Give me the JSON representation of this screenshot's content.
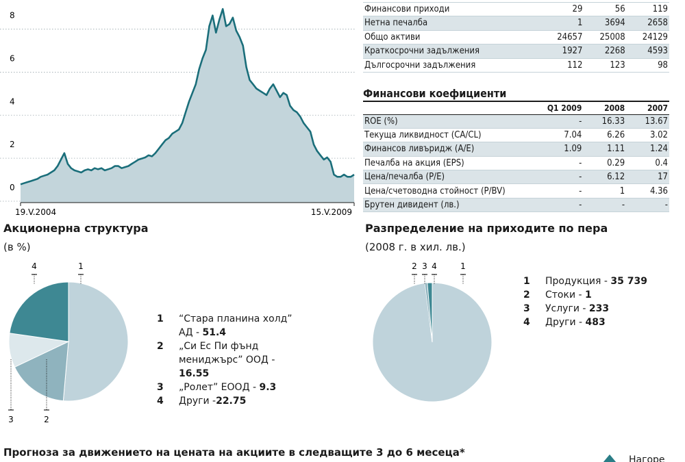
{
  "colors": {
    "area_fill": "#c3d5db",
    "line": "#1a6e7a",
    "pie_light": "#bfd3db",
    "pie_mid": "#8fb3be",
    "pie_pale": "#dde8ec",
    "pie_dark": "#3e8893",
    "table_band": "#dbe4e8"
  },
  "chart_data": [
    {
      "type": "area",
      "x_start_label": "19.V.2004",
      "x_end_label": "15.V.2009",
      "yticks": [
        0,
        2,
        4,
        6,
        8
      ],
      "ylim": [
        -0.7,
        8.4
      ],
      "grid": true,
      "series": [
        {
          "values": [
            0.15,
            0.2,
            0.25,
            0.3,
            0.35,
            0.4,
            0.5,
            0.55,
            0.6,
            0.7,
            0.8,
            1.0,
            1.3,
            1.6,
            1.1,
            0.9,
            0.8,
            0.75,
            0.7,
            0.8,
            0.85,
            0.8,
            0.9,
            0.85,
            0.9,
            0.8,
            0.85,
            0.9,
            1.0,
            1.0,
            0.9,
            0.95,
            1.0,
            1.1,
            1.2,
            1.3,
            1.35,
            1.4,
            1.5,
            1.45,
            1.6,
            1.8,
            2.0,
            2.2,
            2.3,
            2.5,
            2.6,
            2.7,
            3.0,
            3.5,
            4.0,
            4.4,
            4.8,
            5.5,
            6.0,
            6.4,
            7.5,
            8.0,
            7.2,
            7.8,
            8.3,
            7.5,
            7.6,
            7.9,
            7.3,
            7.0,
            6.6,
            5.6,
            5.0,
            4.8,
            4.6,
            4.5,
            4.4,
            4.3,
            4.6,
            4.8,
            4.5,
            4.2,
            4.4,
            4.3,
            3.8,
            3.6,
            3.5,
            3.3,
            3.0,
            2.8,
            2.6,
            2.0,
            1.7,
            1.5,
            1.3,
            1.4,
            1.2,
            0.6,
            0.5,
            0.5,
            0.6,
            0.5,
            0.5,
            0.6
          ]
        }
      ]
    },
    {
      "type": "pie",
      "title": "Акционерна структура",
      "subtitle": "(в %)",
      "series": [
        {
          "values": [
            51.4,
            16.55,
            9.3,
            22.75
          ],
          "labels": [
            "1",
            "2",
            "3",
            "4"
          ]
        }
      ]
    },
    {
      "type": "pie",
      "title": "Разпределение на приходите по пера",
      "subtitle": "(2008 г. в хил. лв.)",
      "series": [
        {
          "values": [
            35739,
            1,
            233,
            483
          ],
          "labels": [
            "1",
            "2",
            "3",
            "4"
          ]
        }
      ]
    }
  ],
  "financials": {
    "rows": [
      {
        "label": "Финансови приходи",
        "v1": "29",
        "v2": "56",
        "v3": "119"
      },
      {
        "label": "Нетна печалба",
        "v1": "1",
        "v2": "3694",
        "v3": "2658"
      },
      {
        "label": "Общо активи",
        "v1": "24657",
        "v2": "25008",
        "v3": "24129"
      },
      {
        "label": "Краткосрочни задължения",
        "v1": "1927",
        "v2": "2268",
        "v3": "4593"
      },
      {
        "label": "Дългосрочни задължения",
        "v1": "112",
        "v2": "123",
        "v3": "98"
      }
    ]
  },
  "ratios": {
    "title": "Финансови коефициенти",
    "headers": [
      "Q1 2009",
      "2008",
      "2007"
    ],
    "rows": [
      {
        "label": "ROE (%)",
        "v1": "-",
        "v2": "16.33",
        "v3": "13.67"
      },
      {
        "label": "Текуща ликвидност (CA/CL)",
        "v1": "7.04",
        "v2": "6.26",
        "v3": "3.02"
      },
      {
        "label": "Финансов ливъридж (A/E)",
        "v1": "1.09",
        "v2": "1.11",
        "v3": "1.24"
      },
      {
        "label": "Печалба на акция (EPS)",
        "v1": "-",
        "v2": "0.29",
        "v3": "0.4"
      },
      {
        "label": "Цена/печалба (P/E)",
        "v1": "-",
        "v2": "6.12",
        "v3": "17"
      },
      {
        "label": "Цена/счетоводна стойност (P/BV)",
        "v1": "-",
        "v2": "1",
        "v3": "4.36"
      },
      {
        "label": "Брутен дивидент (лв.)",
        "v1": "-",
        "v2": "-",
        "v3": "-"
      }
    ]
  },
  "shareholders": {
    "legend": [
      {
        "n": "1",
        "text": "“Стара планина холд” АД - ",
        "value": "51.4"
      },
      {
        "n": "2",
        "text": "„Си Ес Пи фънд мениджърс” ООД - ",
        "value": "16.55"
      },
      {
        "n": "3",
        "text": "„Ролет” ЕООД - ",
        "value": "9.3"
      },
      {
        "n": "4",
        "text": "Други -",
        "value": "22.75"
      }
    ]
  },
  "revenue": {
    "legend": [
      {
        "n": "1",
        "text": "Продукция - ",
        "value": "35 739"
      },
      {
        "n": "2",
        "text": "Стоки - ",
        "value": "1"
      },
      {
        "n": "3",
        "text": "Услуги - ",
        "value": "233"
      },
      {
        "n": "4",
        "text": "Други - ",
        "value": "483"
      }
    ]
  },
  "forecast": {
    "title": "Прогноза за движението на цената на акциите в следващите 3 до 6 месеца*",
    "up_label": "Нагоре"
  }
}
